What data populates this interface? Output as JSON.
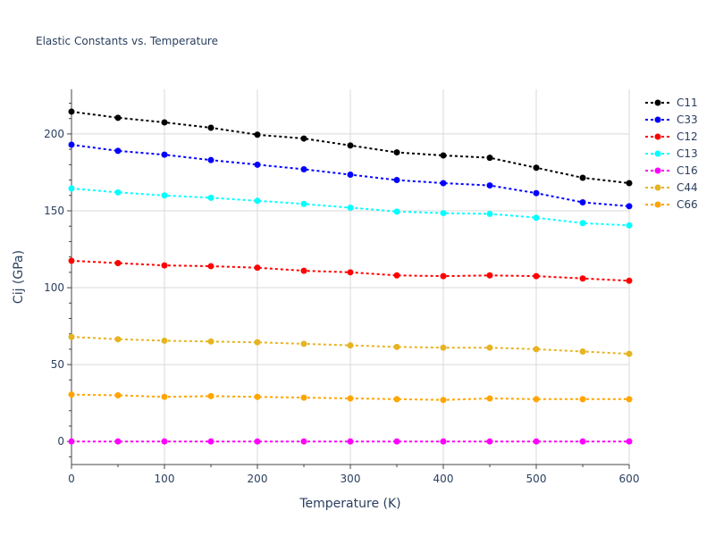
{
  "chart_data": {
    "type": "line",
    "title": "Elastic Constants vs. Temperature",
    "xlabel": "Temperature (K)",
    "ylabel": "Cij (GPa)",
    "xlim": [
      0,
      600
    ],
    "ylim": [
      -15,
      229
    ],
    "grid": true,
    "legend_position": "top-right",
    "x": [
      0,
      50,
      100,
      150,
      200,
      250,
      300,
      350,
      400,
      450,
      500,
      550,
      600
    ],
    "x_ticks": [
      0,
      100,
      200,
      300,
      400,
      500,
      600
    ],
    "y_ticks": [
      0,
      50,
      100,
      150,
      200
    ],
    "series": [
      {
        "name": "C11",
        "color": "#000000",
        "values": [
          214.5,
          210.5,
          207.5,
          204.0,
          199.5,
          197.0,
          192.5,
          188.0,
          186.0,
          184.5,
          178.0,
          171.5,
          168.0
        ]
      },
      {
        "name": "C33",
        "color": "#0000ff",
        "values": [
          193.0,
          189.0,
          186.5,
          183.0,
          180.0,
          177.0,
          173.5,
          170.0,
          168.0,
          166.5,
          161.5,
          155.5,
          153.0
        ]
      },
      {
        "name": "C12",
        "color": "#ff0000",
        "values": [
          117.5,
          116.0,
          114.5,
          114.0,
          113.0,
          111.0,
          110.0,
          108.0,
          107.5,
          108.0,
          107.5,
          106.0,
          104.5
        ]
      },
      {
        "name": "C13",
        "color": "#00ffff",
        "values": [
          164.5,
          162.0,
          160.0,
          158.5,
          156.5,
          154.5,
          152.0,
          149.5,
          148.5,
          148.0,
          145.5,
          142.0,
          140.5
        ]
      },
      {
        "name": "C16",
        "color": "#ff00ff",
        "values": [
          0,
          0,
          0,
          0,
          0,
          0,
          0,
          0,
          0,
          0,
          0,
          0,
          0
        ]
      },
      {
        "name": "C44",
        "color": "#e6b422",
        "values": [
          68.0,
          66.5,
          65.5,
          65.0,
          64.5,
          63.5,
          62.5,
          61.5,
          61.0,
          61.0,
          60.0,
          58.5,
          57.0
        ]
      },
      {
        "name": "C66",
        "color": "#ffa500",
        "values": [
          30.5,
          30.0,
          29.0,
          29.5,
          29.0,
          28.5,
          28.0,
          27.5,
          27.0,
          28.0,
          27.5,
          27.5,
          27.5
        ]
      }
    ]
  }
}
